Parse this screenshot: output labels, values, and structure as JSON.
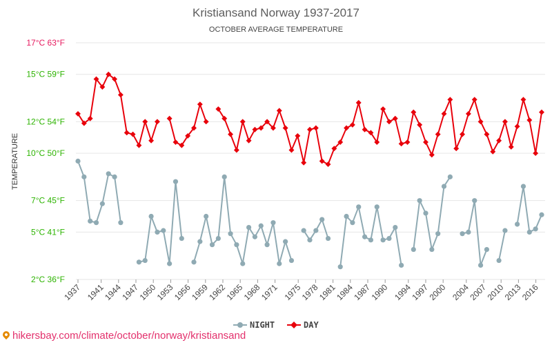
{
  "chart_data": {
    "type": "line",
    "title": "Kristiansand Norway 1937-2017",
    "subtitle": "OCTOBER AVERAGE TEMPERATURE",
    "ylabel": "TEMPERATURE",
    "ylim": [
      2,
      17
    ],
    "y_ticks": [
      {
        "value": 2,
        "label": "2°C 36°F",
        "color": "#2cb300"
      },
      {
        "value": 5,
        "label": "5°C 41°F",
        "color": "#2cb300"
      },
      {
        "value": 7,
        "label": "7°C 45°F",
        "color": "#2cb300"
      },
      {
        "value": 10,
        "label": "10°C 50°F",
        "color": "#2cb300"
      },
      {
        "value": 12,
        "label": "12°C 54°F",
        "color": "#2cb300"
      },
      {
        "value": 15,
        "label": "15°C 59°F",
        "color": "#2cb300"
      },
      {
        "value": 17,
        "label": "17°C 63°F",
        "color": "#e6195e"
      }
    ],
    "x_tick_labels": [
      "1937",
      "1941",
      "1944",
      "1947",
      "1950",
      "1953",
      "1956",
      "1959",
      "1962",
      "1965",
      "1968",
      "1971",
      "1975",
      "1978",
      "1981",
      "1984",
      "1987",
      "1990",
      "1994",
      "1997",
      "2000",
      "2004",
      "2007",
      "2010",
      "2013",
      "2016"
    ],
    "xlim": [
      1937,
      2017
    ],
    "grid": true,
    "legend_position": "bottom-center",
    "series": [
      {
        "name": "NIGHT",
        "color": "#8faab3",
        "values": [
          9.5,
          8.5,
          5.7,
          5.6,
          6.8,
          8.7,
          8.5,
          5.6,
          null,
          null,
          3.1,
          3.2,
          6.0,
          5.0,
          5.1,
          3.0,
          8.2,
          4.6,
          null,
          3.1,
          4.4,
          6.0,
          4.2,
          4.6,
          8.5,
          4.9,
          4.2,
          3.0,
          5.3,
          4.7,
          5.4,
          4.2,
          5.6,
          3.0,
          4.4,
          3.2,
          null,
          5.1,
          4.5,
          5.1,
          5.8,
          4.6,
          null,
          2.8,
          6.0,
          5.6,
          6.6,
          4.7,
          4.5,
          6.6,
          4.5,
          4.6,
          5.3,
          2.9,
          null,
          3.9,
          7.0,
          6.2,
          3.9,
          4.9,
          7.9,
          8.5,
          null,
          4.9,
          5.0,
          7.0,
          2.9,
          3.9,
          null,
          3.2,
          5.1,
          null,
          5.5,
          7.9,
          5.0,
          5.2,
          6.1
        ]
      },
      {
        "name": "DAY",
        "color": "#e8000b",
        "values": [
          12.5,
          11.9,
          12.2,
          14.7,
          14.2,
          15.0,
          14.7,
          13.7,
          11.3,
          11.2,
          10.5,
          12.0,
          10.8,
          12.0,
          null,
          12.2,
          10.7,
          10.5,
          11.1,
          11.6,
          13.1,
          12.0,
          null,
          12.8,
          12.2,
          11.2,
          10.2,
          12.0,
          10.8,
          11.5,
          11.6,
          12.0,
          11.6,
          12.7,
          11.6,
          10.2,
          11.1,
          9.4,
          11.5,
          11.6,
          9.5,
          9.3,
          10.3,
          10.7,
          11.6,
          11.8,
          13.2,
          11.5,
          11.3,
          10.7,
          12.8,
          12.0,
          12.2,
          10.6,
          10.7,
          12.6,
          11.8,
          10.7,
          9.9,
          11.2,
          12.5,
          13.4,
          10.3,
          11.2,
          12.5,
          13.4,
          12.0,
          11.2,
          10.1,
          10.8,
          12.0,
          10.4,
          11.7,
          13.4,
          12.1,
          10.0,
          12.6
        ]
      }
    ]
  },
  "legend": {
    "night_label": "NIGHT",
    "day_label": "DAY"
  },
  "footer": {
    "text": "hikersbay.com/climate/october/norway/kristiansand"
  }
}
